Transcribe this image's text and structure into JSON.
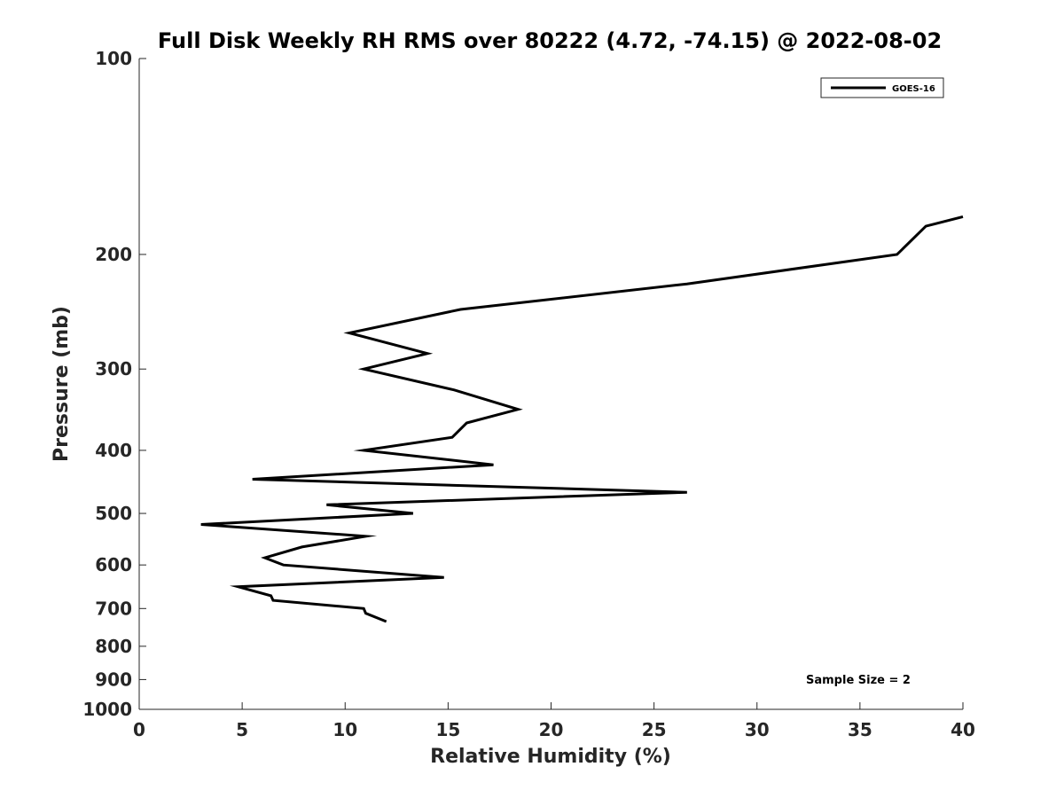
{
  "chart_data": {
    "type": "line",
    "title": "Full Disk Weekly RH RMS over 80222 (4.72, -74.15) @ 2022-08-02",
    "xlabel": "Relative Humidity (%)",
    "ylabel": "Pressure (mb)",
    "xlim": [
      0,
      40
    ],
    "ylim": [
      100,
      1000
    ],
    "yscale": "log",
    "y_reversed": true,
    "xticks": [
      0,
      5,
      10,
      15,
      20,
      25,
      30,
      35,
      40
    ],
    "yticks": [
      100,
      200,
      300,
      400,
      500,
      600,
      700,
      800,
      900,
      1000
    ],
    "legend_position": "top-right",
    "series": [
      {
        "name": "GOES-16",
        "color": "#000000",
        "points": [
          {
            "x": 40.0,
            "y": 175
          },
          {
            "x": 38.2,
            "y": 181
          },
          {
            "x": 36.8,
            "y": 200
          },
          {
            "x": 26.6,
            "y": 222
          },
          {
            "x": 15.6,
            "y": 243
          },
          {
            "x": 10.2,
            "y": 264
          },
          {
            "x": 14.0,
            "y": 284
          },
          {
            "x": 10.9,
            "y": 300
          },
          {
            "x": 15.3,
            "y": 323
          },
          {
            "x": 18.4,
            "y": 346
          },
          {
            "x": 15.9,
            "y": 363
          },
          {
            "x": 15.2,
            "y": 382
          },
          {
            "x": 10.9,
            "y": 400
          },
          {
            "x": 17.2,
            "y": 421
          },
          {
            "x": 5.5,
            "y": 443
          },
          {
            "x": 26.6,
            "y": 464
          },
          {
            "x": 9.1,
            "y": 485
          },
          {
            "x": 13.3,
            "y": 500
          },
          {
            "x": 3.0,
            "y": 520
          },
          {
            "x": 11.0,
            "y": 542
          },
          {
            "x": 7.9,
            "y": 563
          },
          {
            "x": 6.1,
            "y": 585
          },
          {
            "x": 7.0,
            "y": 600
          },
          {
            "x": 14.8,
            "y": 627
          },
          {
            "x": 4.8,
            "y": 648
          },
          {
            "x": 6.4,
            "y": 669
          },
          {
            "x": 6.5,
            "y": 680
          },
          {
            "x": 10.9,
            "y": 700
          },
          {
            "x": 11.0,
            "y": 712
          },
          {
            "x": 12.0,
            "y": 733
          }
        ]
      }
    ],
    "annotations": [
      {
        "text": "Sample Size = 2",
        "position": "bottom-right"
      }
    ]
  }
}
